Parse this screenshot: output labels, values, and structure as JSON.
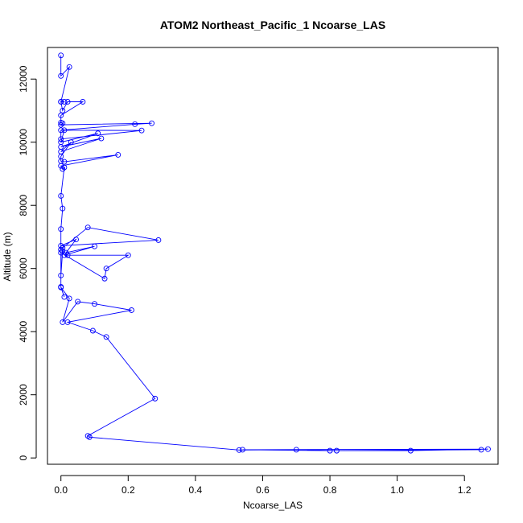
{
  "chart_data": {
    "type": "line",
    "title": "ATOM2 Northeast_Pacific_1 Ncoarse_LAS",
    "xlabel": "Ncoarse_LAS",
    "ylabel": "Altitude (m)",
    "xlim": [
      -0.04,
      1.3
    ],
    "ylim": [
      -200,
      13000
    ],
    "x_ticks": [
      0.0,
      0.2,
      0.4,
      0.6,
      0.8,
      1.0,
      1.2
    ],
    "x_tick_labels": [
      "0.0",
      "0.2",
      "0.4",
      "0.6",
      "0.8",
      "1.0",
      "1.2"
    ],
    "y_ticks": [
      0,
      2000,
      4000,
      6000,
      8000,
      10000,
      12000
    ],
    "y_tick_labels": [
      "0",
      "2000",
      "4000",
      "6000",
      "8000",
      "10000",
      "12000"
    ],
    "grid": false,
    "series_color": "#0000ff",
    "series": [
      {
        "x": [
          0.0,
          0.0,
          0.025,
          0.0,
          0.01,
          0.0,
          0.005,
          0.02,
          0.065,
          0.0,
          0.0,
          0.005,
          0.0,
          0.27,
          0.22,
          0.0,
          0.0,
          0.24,
          0.01,
          0.0,
          0.11,
          0.0,
          0.12,
          0.0,
          0.03,
          0.0,
          0.0,
          0.01,
          0.17,
          0.0,
          0.005,
          0.01,
          0.0,
          0.005,
          0.0,
          0.0,
          0.005,
          0.0,
          0.005,
          0.08,
          0.29,
          0.0,
          0.045,
          0.015,
          0.1,
          0.01,
          0.02,
          0.2,
          0.135,
          0.13,
          0.0,
          0.0,
          0.01,
          0.0,
          0.025,
          0.005,
          0.05,
          0.1,
          0.21,
          0.02,
          0.095,
          0.135,
          0.28,
          0.08,
          0.085,
          0.53,
          0.7,
          0.82,
          1.04,
          1.27,
          0.54,
          0.8,
          1.25
        ],
        "y": [
          12750,
          12100,
          12380,
          11280,
          11280,
          11280,
          11000,
          11280,
          11280,
          10850,
          10620,
          10600,
          10550,
          10600,
          10570,
          10380,
          10100,
          10370,
          10380,
          10000,
          10280,
          9850,
          10120,
          9700,
          10000,
          9550,
          9400,
          9380,
          9600,
          9250,
          9150,
          9200,
          8300,
          7900,
          7250,
          6600,
          6550,
          5780,
          6650,
          7300,
          6900,
          6720,
          6920,
          6500,
          6700,
          6420,
          6420,
          6420,
          6000,
          5680,
          6500,
          5420,
          5100,
          5400,
          5050,
          4300,
          4950,
          4880,
          4680,
          4300,
          4030,
          3830,
          1880,
          700,
          660,
          250,
          260,
          230,
          230,
          280,
          260,
          230,
          260
        ]
      }
    ]
  }
}
